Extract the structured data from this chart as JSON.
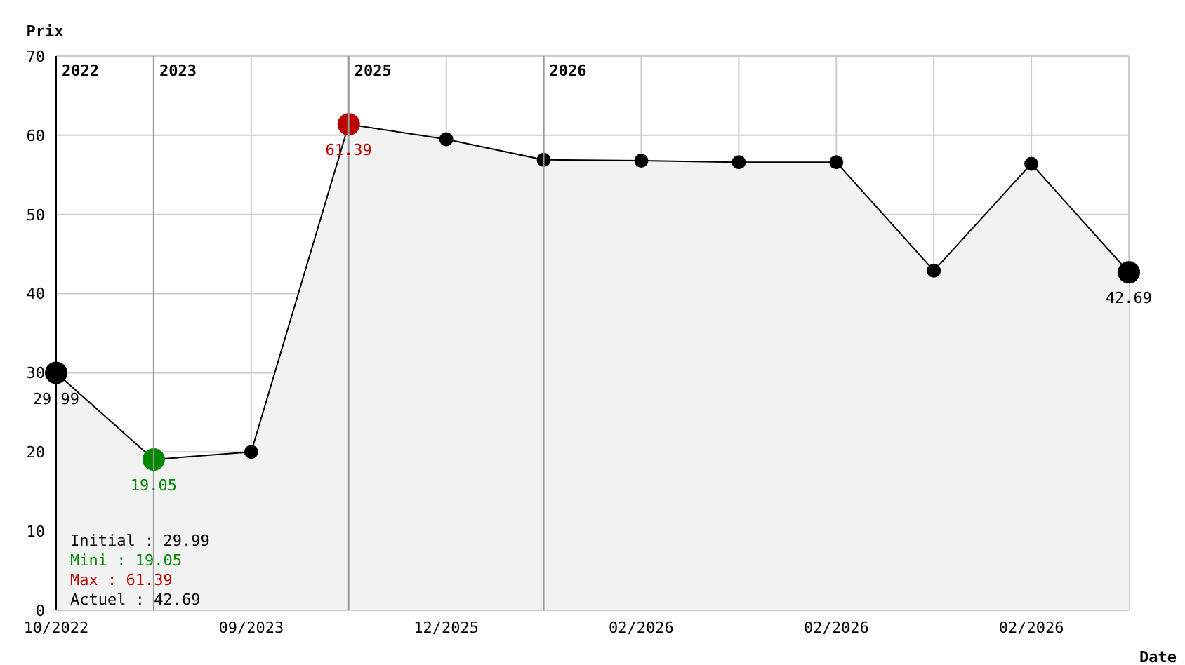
{
  "chart_data": {
    "type": "area",
    "xlabel": "Date",
    "ylabel": "Prix",
    "categories": [
      "10/2022",
      null,
      "09/2023",
      null,
      "12/2025",
      null,
      "02/2026",
      null,
      "02/2026",
      null,
      "02/2026",
      null
    ],
    "series": [
      {
        "color": "#000000",
        "values": [
          29.99,
          19.05,
          20,
          61.39,
          59.5,
          56.9,
          56.8,
          56.6,
          56.6,
          42.9,
          56.4,
          42.69
        ],
        "colors": [
          "#000000",
          "#008800",
          "#000000",
          "#bb0000",
          "#000000",
          "#000000",
          "#000000",
          "#000000",
          "#000000",
          "#000000",
          "#000000",
          "#000000"
        ]
      }
    ],
    "ylim": [
      0,
      70
    ],
    "yticks": [
      0,
      10,
      20,
      30,
      40,
      50,
      60,
      70
    ],
    "grid": true,
    "marker": "circle",
    "annotations": [
      {
        "text": "29.99",
        "x": "10/2022",
        "y": 29.99
      },
      {
        "text": "19.05",
        "y": 19.05
      },
      {
        "text": "61.39",
        "y": 61.39
      },
      {
        "text": "42.69",
        "y": 42.69
      },
      "2022",
      "2023",
      "2025",
      "2026",
      "Initial : 29.99",
      "Mini : 19.05",
      "Max : 61.39",
      "Actuel : 42.69"
    ]
  }
}
